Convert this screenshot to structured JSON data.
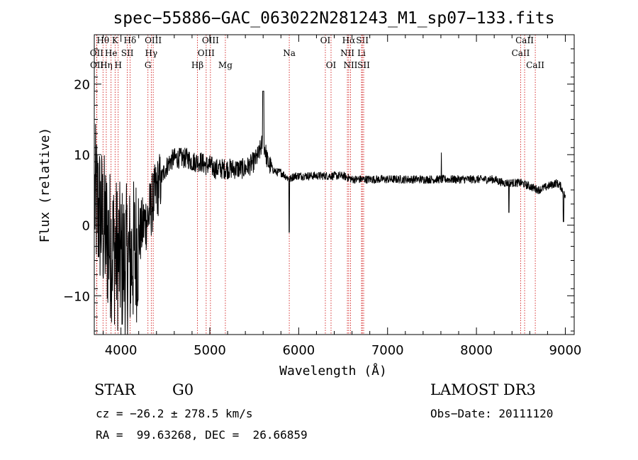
{
  "chart_data": {
    "type": "line",
    "title": "spec−55886−GAC_063022N281243_M1_sp07−133.fits",
    "xlabel": "Wavelength (Å)",
    "ylabel": "Flux (relative)",
    "xlim": [
      3700,
      9100
    ],
    "ylim": [
      -15.5,
      27
    ],
    "x_ticks": [
      4000,
      5000,
      6000,
      7000,
      8000,
      9000
    ],
    "y_ticks": [
      -10,
      0,
      10,
      20
    ],
    "grid": false,
    "line_color": "#000000",
    "marker_color": "#cc0000",
    "series": [
      {
        "x": [
          3700,
          3750,
          3800,
          3850,
          3900,
          3950,
          4000,
          4050,
          4100,
          4150,
          4200,
          4250,
          4300,
          4350,
          4400,
          4450,
          4500,
          4550,
          4600,
          4650,
          4700,
          4750,
          4800,
          4850,
          4900,
          4950,
          5000,
          5050,
          5100,
          5150,
          5200,
          5250,
          5300,
          5350,
          5400,
          5450,
          5500,
          5550,
          5600,
          5650,
          5700,
          5750,
          5800,
          5850,
          5900,
          5950,
          6000,
          6100,
          6200,
          6300,
          6400,
          6500,
          6600,
          6700,
          6800,
          6900,
          7000,
          7100,
          7200,
          7300,
          7400,
          7500,
          7600,
          7700,
          7800,
          7900,
          8000,
          8100,
          8200,
          8300,
          8400,
          8500,
          8600,
          8700,
          8800,
          8900,
          8950,
          9000
        ],
        "y": [
          4,
          2,
          0,
          -2,
          -3,
          -4,
          -5,
          -5,
          -5,
          -4,
          -2,
          0,
          1,
          3,
          5,
          6.5,
          8,
          9,
          9.5,
          9.5,
          9.5,
          9.5,
          9,
          9,
          9,
          8.5,
          8.5,
          8,
          8,
          8,
          8,
          8,
          8,
          8,
          8,
          8.5,
          9,
          10,
          12,
          9,
          8,
          7.5,
          7.5,
          7,
          6.5,
          7,
          7,
          7,
          7,
          7,
          7,
          7,
          6.5,
          6.5,
          6.5,
          6.5,
          6.5,
          6.5,
          6.5,
          6.5,
          6.5,
          6.5,
          6.5,
          6.5,
          6.5,
          6.5,
          6.5,
          6.5,
          6.5,
          6,
          6,
          6,
          5.5,
          5,
          5.5,
          6,
          5.5,
          4
        ]
      }
    ],
    "line_markers": [
      {
        "label": "OII",
        "x": 3727,
        "row": 1
      },
      {
        "label": "OII",
        "x": 3729,
        "row": 2
      },
      {
        "label": "Hθ",
        "x": 3798,
        "row": 0
      },
      {
        "label": "Hη",
        "x": 3835,
        "row": 2
      },
      {
        "label": "He",
        "x": 3889,
        "row": 1
      },
      {
        "label": "K",
        "x": 3934,
        "row": 0
      },
      {
        "label": "H",
        "x": 3969,
        "row": 2
      },
      {
        "label": "SII",
        "x": 4072,
        "row": 1
      },
      {
        "label": "Hδ",
        "x": 4102,
        "row": 0
      },
      {
        "label": "G",
        "x": 4304,
        "row": 2
      },
      {
        "label": "Hγ",
        "x": 4341,
        "row": 1
      },
      {
        "label": "OIII",
        "x": 4363,
        "row": 0
      },
      {
        "label": "Hβ",
        "x": 4861,
        "row": 2
      },
      {
        "label": "OIII",
        "x": 4959,
        "row": 1
      },
      {
        "label": "OIII",
        "x": 5007,
        "row": 0
      },
      {
        "label": "Mg",
        "x": 5175,
        "row": 2
      },
      {
        "label": "Na",
        "x": 5894,
        "row": 1
      },
      {
        "label": "OI",
        "x": 6300,
        "row": 0
      },
      {
        "label": "OI",
        "x": 6364,
        "row": 2
      },
      {
        "label": "NII",
        "x": 6548,
        "row": 1
      },
      {
        "label": "Hα",
        "x": 6563,
        "row": 0
      },
      {
        "label": "NII",
        "x": 6583,
        "row": 2
      },
      {
        "label": "Li",
        "x": 6707,
        "row": 1
      },
      {
        "label": "SII",
        "x": 6716,
        "row": 0
      },
      {
        "label": "SII",
        "x": 6731,
        "row": 2
      },
      {
        "label": "CaII",
        "x": 8498,
        "row": 1
      },
      {
        "label": "CaII",
        "x": 8542,
        "row": 0
      },
      {
        "label": "CaII",
        "x": 8662,
        "row": 2
      }
    ]
  },
  "info": {
    "class": "STAR",
    "subclass": "G0",
    "survey": "LAMOST DR3",
    "cz": "cz = −26.2 ± 278.5 km/s",
    "obs_date": "Obs−Date: 20111120",
    "coords": "RA =  99.63268, DEC =  26.66859"
  }
}
